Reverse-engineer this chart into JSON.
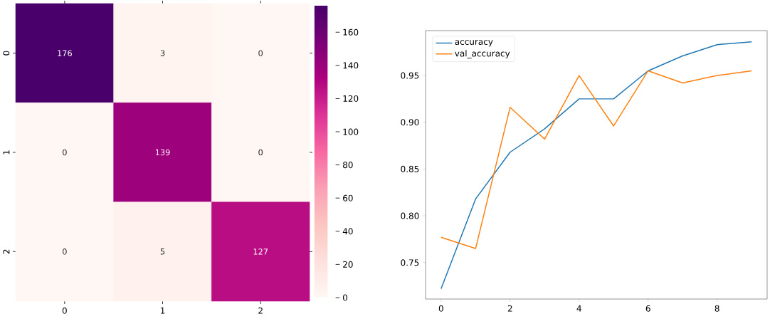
{
  "chart_data": [
    {
      "type": "heatmap",
      "categories": [
        "0",
        "1",
        "2"
      ],
      "y_categories": [
        "0",
        "1",
        "2"
      ],
      "cells": [
        [
          176,
          3,
          0
        ],
        [
          0,
          139,
          0
        ],
        [
          0,
          5,
          127
        ]
      ],
      "clim": [
        0,
        176
      ],
      "cticks": [
        0,
        20,
        40,
        60,
        80,
        100,
        120,
        140,
        160
      ],
      "data_labels": true
    },
    {
      "type": "line",
      "x": [
        0,
        1,
        2,
        3,
        4,
        5,
        6,
        7,
        8,
        9
      ],
      "series": [
        {
          "name": "accuracy",
          "color": "#1f77b4",
          "values": [
            0.722,
            0.818,
            0.868,
            0.893,
            0.925,
            0.925,
            0.955,
            0.971,
            0.983,
            0.986
          ]
        },
        {
          "name": "val_accuracy",
          "color": "#ff7f0e",
          "values": [
            0.777,
            0.765,
            0.916,
            0.882,
            0.95,
            0.896,
            0.955,
            0.942,
            0.95,
            0.955
          ]
        }
      ],
      "xlim": [
        -0.45,
        9.45
      ],
      "ylim": [
        0.711,
        0.998
      ],
      "xticks": [
        0,
        2,
        4,
        6,
        8
      ],
      "yticks": [
        {
          "value": 0.75,
          "label": "0.75"
        },
        {
          "value": 0.8,
          "label": "0.80"
        },
        {
          "value": 0.85,
          "label": "0.85"
        },
        {
          "value": 0.9,
          "label": "0.90"
        },
        {
          "value": 0.95,
          "label": "0.95"
        }
      ],
      "legend": "top left"
    }
  ]
}
